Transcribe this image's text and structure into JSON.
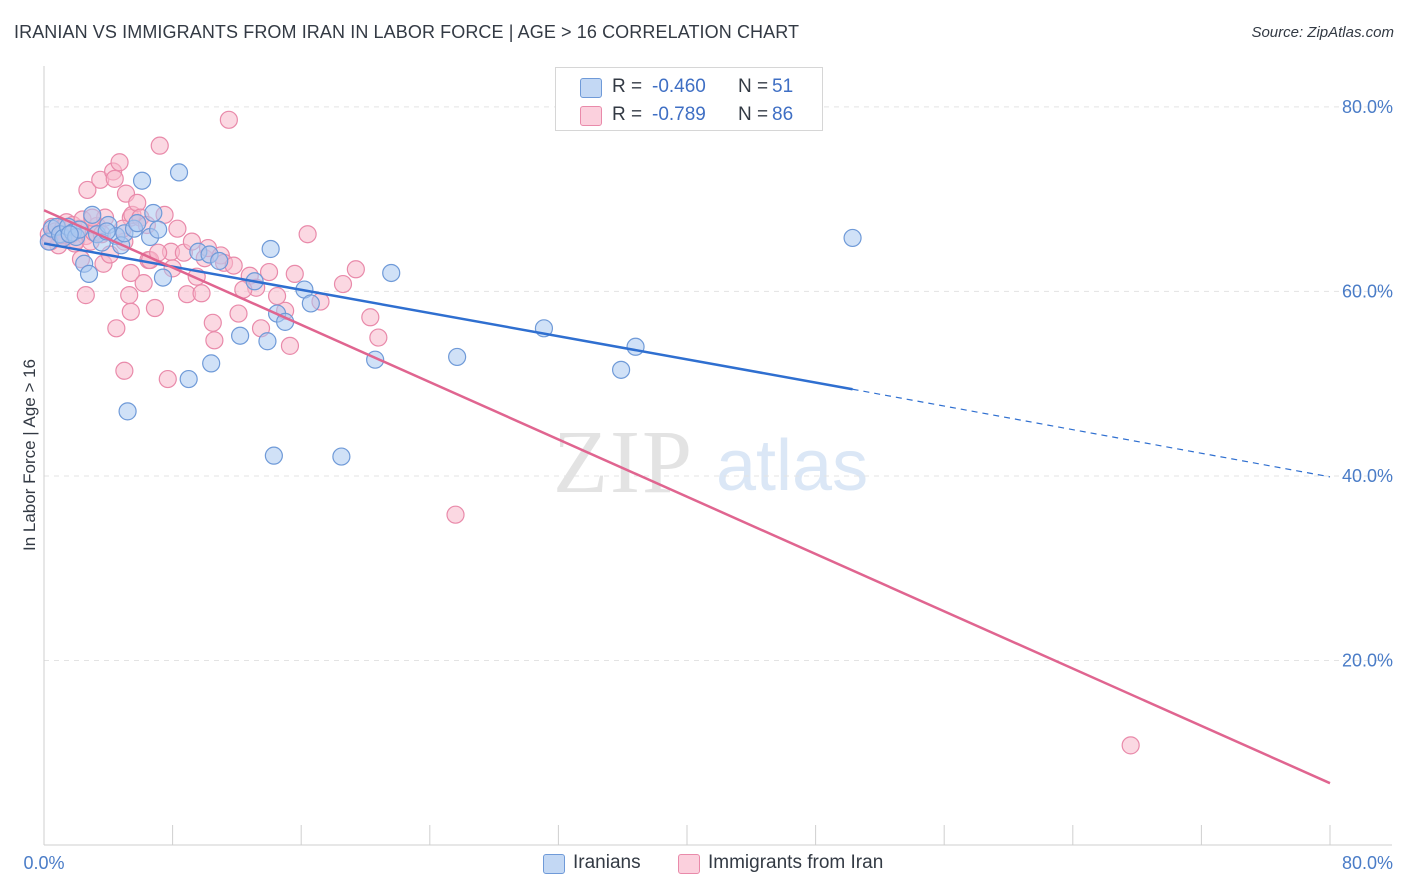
{
  "title": "IRANIAN VS IMMIGRANTS FROM IRAN IN LABOR FORCE | AGE > 16 CORRELATION CHART",
  "source": "Source: ZipAtlas.com",
  "watermark": {
    "zip": "ZIP",
    "atlas": "atlas"
  },
  "colors": {
    "iranians_fill": "#a9c8f0",
    "iranians_stroke": "#6f9ad8",
    "iranians_line": "#2f6fd0",
    "immigrants_fill": "#f7b8cb",
    "immigrants_stroke": "#e98aaa",
    "immigrants_line": "#e06590",
    "tick": "#4a7cc7",
    "grid": "#e3e3e3"
  },
  "legend": {
    "iranians": {
      "r_label": "R =",
      "r_value": "-0.460",
      "n_label": "N =",
      "n_value": "51"
    },
    "immigrants": {
      "r_label": "R =",
      "r_value": "-0.789",
      "n_label": "N =",
      "n_value": "86"
    }
  },
  "bottom_legend": {
    "iranians": "Iranians",
    "immigrants": "Immigrants from Iran"
  },
  "chart_data": {
    "type": "scatter",
    "title": "IRANIAN VS IMMIGRANTS FROM IRAN IN LABOR FORCE | AGE > 16 CORRELATION CHART",
    "xlabel": "",
    "ylabel": "In Labor Force | Age > 16",
    "xlim": [
      0,
      80
    ],
    "ylim": [
      0,
      84
    ],
    "x_tick_labels": [
      "0.0%",
      "80.0%"
    ],
    "y_ticks": [
      20,
      40,
      60,
      80
    ],
    "y_tick_labels": [
      "20.0%",
      "40.0%",
      "60.0%",
      "80.0%"
    ],
    "grid": true,
    "legend_position": "top-center",
    "series": [
      {
        "name": "Iranians",
        "points": [
          [
            0.3,
            65.4
          ],
          [
            0.5,
            66.8
          ],
          [
            0.8,
            67.0
          ],
          [
            1.0,
            66.2
          ],
          [
            1.2,
            65.8
          ],
          [
            1.5,
            67.0
          ],
          [
            1.8,
            66.4
          ],
          [
            2.0,
            65.9
          ],
          [
            2.2,
            66.7
          ],
          [
            2.5,
            63.0
          ],
          [
            2.8,
            61.9
          ],
          [
            3.0,
            68.3
          ],
          [
            3.3,
            66.2
          ],
          [
            3.6,
            65.3
          ],
          [
            4.0,
            67.2
          ],
          [
            4.5,
            66.0
          ],
          [
            4.8,
            65.0
          ],
          [
            5.0,
            66.3
          ],
          [
            5.2,
            47.0
          ],
          [
            5.6,
            66.8
          ],
          [
            5.8,
            67.4
          ],
          [
            6.1,
            72.0
          ],
          [
            6.6,
            65.9
          ],
          [
            6.8,
            68.5
          ],
          [
            7.1,
            66.7
          ],
          [
            7.4,
            61.5
          ],
          [
            8.4,
            72.9
          ],
          [
            9.0,
            50.5
          ],
          [
            9.6,
            64.3
          ],
          [
            10.3,
            64.0
          ],
          [
            10.4,
            52.2
          ],
          [
            10.9,
            63.3
          ],
          [
            12.2,
            55.2
          ],
          [
            13.1,
            61.1
          ],
          [
            13.9,
            54.6
          ],
          [
            14.1,
            64.6
          ],
          [
            14.5,
            57.6
          ],
          [
            15.0,
            56.7
          ],
          [
            16.2,
            60.2
          ],
          [
            16.6,
            58.7
          ],
          [
            14.3,
            42.2
          ],
          [
            18.5,
            42.1
          ],
          [
            20.6,
            52.6
          ],
          [
            21.6,
            62.0
          ],
          [
            25.7,
            52.9
          ],
          [
            31.1,
            56.0
          ],
          [
            35.9,
            51.5
          ],
          [
            36.8,
            54.0
          ],
          [
            50.3,
            65.8
          ],
          [
            1.6,
            66.2
          ],
          [
            3.9,
            66.5
          ]
        ]
      },
      {
        "name": "Immigrants from Iran",
        "points": [
          [
            0.3,
            66.2
          ],
          [
            0.5,
            67.0
          ],
          [
            0.7,
            66.5
          ],
          [
            1.0,
            65.8
          ],
          [
            1.2,
            66.9
          ],
          [
            1.4,
            67.5
          ],
          [
            1.6,
            66.0
          ],
          [
            1.8,
            67.2
          ],
          [
            2.0,
            65.5
          ],
          [
            2.2,
            66.8
          ],
          [
            2.4,
            67.8
          ],
          [
            2.6,
            66.0
          ],
          [
            2.9,
            65.4
          ],
          [
            3.1,
            66.4
          ],
          [
            3.3,
            67.1
          ],
          [
            3.6,
            66.2
          ],
          [
            2.7,
            71.0
          ],
          [
            3.5,
            72.1
          ],
          [
            3.8,
            68.0
          ],
          [
            4.3,
            73.0
          ],
          [
            4.4,
            72.2
          ],
          [
            4.7,
            74.0
          ],
          [
            5.1,
            70.6
          ],
          [
            5.4,
            68.0
          ],
          [
            5.5,
            68.3
          ],
          [
            5.8,
            69.6
          ],
          [
            6.0,
            68.0
          ],
          [
            5.0,
            65.4
          ],
          [
            2.6,
            59.6
          ],
          [
            4.5,
            56.0
          ],
          [
            5.0,
            51.4
          ],
          [
            5.3,
            59.6
          ],
          [
            5.4,
            57.8
          ],
          [
            5.4,
            62.0
          ],
          [
            6.2,
            60.9
          ],
          [
            6.5,
            63.4
          ],
          [
            6.9,
            58.2
          ],
          [
            7.5,
            68.3
          ],
          [
            7.2,
            75.8
          ],
          [
            7.7,
            50.5
          ],
          [
            7.9,
            64.3
          ],
          [
            8.3,
            66.8
          ],
          [
            8.7,
            64.2
          ],
          [
            8.9,
            59.7
          ],
          [
            9.5,
            61.6
          ],
          [
            9.8,
            59.8
          ],
          [
            10.0,
            63.6
          ],
          [
            10.2,
            64.7
          ],
          [
            10.5,
            56.6
          ],
          [
            10.6,
            54.7
          ],
          [
            11.0,
            63.9
          ],
          [
            11.2,
            63.1
          ],
          [
            11.5,
            78.6
          ],
          [
            12.1,
            57.6
          ],
          [
            12.8,
            61.7
          ],
          [
            13.2,
            60.4
          ],
          [
            13.5,
            56.0
          ],
          [
            14.0,
            62.1
          ],
          [
            15.0,
            57.9
          ],
          [
            15.3,
            54.1
          ],
          [
            15.6,
            61.9
          ],
          [
            16.4,
            66.2
          ],
          [
            18.6,
            60.8
          ],
          [
            19.4,
            62.4
          ],
          [
            20.3,
            57.2
          ],
          [
            20.8,
            55.0
          ],
          [
            25.6,
            35.8
          ],
          [
            67.6,
            10.8
          ],
          [
            0.9,
            65.0
          ],
          [
            1.9,
            65.2
          ],
          [
            3.0,
            68.0
          ],
          [
            3.7,
            63.0
          ],
          [
            4.1,
            64.0
          ],
          [
            6.4,
            67.2
          ],
          [
            6.6,
            63.4
          ],
          [
            7.1,
            64.2
          ],
          [
            8.0,
            62.5
          ],
          [
            9.2,
            65.4
          ],
          [
            11.8,
            62.8
          ],
          [
            12.4,
            60.2
          ],
          [
            14.5,
            59.5
          ],
          [
            17.2,
            58.9
          ],
          [
            2.3,
            63.5
          ],
          [
            0.4,
            65.4
          ],
          [
            1.1,
            66.1
          ],
          [
            4.9,
            66.8
          ]
        ]
      }
    ],
    "trendlines": [
      {
        "series": "Iranians",
        "x": [
          0,
          50.3
        ],
        "y": [
          65.2,
          49.4
        ],
        "dashed_extension_to_x": 80,
        "dashed_end_y": 39.9
      },
      {
        "series": "Immigrants from Iran",
        "x": [
          0,
          80
        ],
        "y": [
          68.8,
          6.7
        ]
      }
    ]
  }
}
